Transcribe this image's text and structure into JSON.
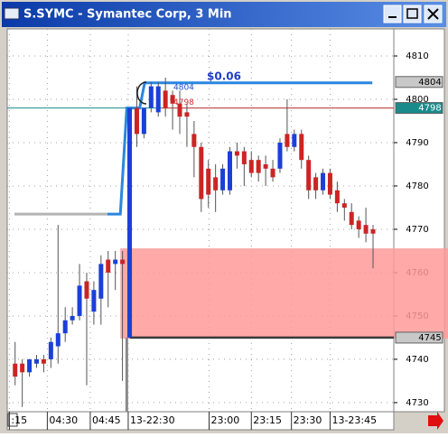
{
  "window": {
    "title": "S.SYMC - Symantec Corp, 3 Min"
  },
  "chart_data": {
    "type": "candlestick",
    "open": [
      4739,
      4739,
      4737,
      4739,
      4740,
      4740,
      4743,
      4746,
      4749,
      4750,
      4758,
      4751,
      4754,
      4763,
      4762,
      4763,
      4745,
      4798,
      4792,
      4798,
      4797,
      4802,
      4801,
      4799,
      4797,
      4792,
      4789,
      4784,
      4782,
      4779,
      4779,
      4788,
      4788,
      4786,
      4786,
      4785,
      4784,
      4784,
      4792,
      4789,
      4792,
      4786,
      4782,
      4779,
      4783,
      4779,
      4776,
      4774,
      4772,
      4771,
      4770
    ],
    "high": [
      4744,
      4740,
      4740,
      4741,
      4741,
      4745,
      4771,
      4752,
      4752,
      4762,
      4760,
      4758,
      4764,
      4765,
      4765,
      4765,
      4798,
      4803,
      4798,
      4804,
      4804,
      4805,
      4802,
      4802,
      4799,
      4795,
      4790,
      4786,
      4785,
      4785,
      4789,
      4790,
      4789,
      4788,
      4787,
      4787,
      4786,
      4791,
      4800,
      4793,
      4793,
      4787,
      4783,
      4784,
      4784,
      4781,
      4777,
      4776,
      4773,
      4775,
      4771
    ],
    "low": [
      4734,
      4729,
      4736,
      4738,
      4737,
      4738,
      4739,
      4744,
      4748,
      4749,
      4734,
      4748,
      4748,
      4752,
      4756,
      4735,
      4745,
      4789,
      4791,
      4797,
      4796,
      4796,
      4793,
      4792,
      4789,
      4782,
      4774,
      4775,
      4774,
      4778,
      4778,
      4784,
      4780,
      4782,
      4781,
      4780,
      4781,
      4783,
      4788,
      4788,
      4784,
      4777,
      4777,
      4778,
      4777,
      4774,
      4772,
      4770,
      4768,
      4767,
      4761
    ],
    "close": [
      4736,
      4737,
      4740,
      4740,
      4739,
      4744,
      4746,
      4749,
      4750,
      4757,
      4754,
      4756,
      4762,
      4760,
      4763,
      4762,
      4798,
      4792,
      4798,
      4803,
      4803,
      4798,
      4799,
      4796,
      4796,
      4789,
      4777,
      4778,
      4779,
      4784,
      4788,
      4787,
      4785,
      4783,
      4783,
      4784,
      4782,
      4790,
      4789,
      4792,
      4786,
      4779,
      4779,
      4783,
      4778,
      4776,
      4775,
      4771,
      4770,
      4769,
      4769
    ],
    "up_color": "#1b3fd8",
    "down_color": "#cc2424",
    "xlim": [
      -1.1,
      52.9
    ],
    "ylim": [
      4727.9,
      4816.25
    ],
    "yticks": [
      4730,
      4740,
      4750,
      4760,
      4770,
      4780,
      4790,
      4800,
      4810
    ],
    "xticks": [
      {
        "value": -0.8,
        "label": ":15"
      },
      {
        "value": 4.5,
        "label": "04:30"
      },
      {
        "value": 10.5,
        "label": "04:45"
      },
      {
        "value": 15.8,
        "label": "13-22:30"
      },
      {
        "value": 27.1,
        "label": "23:00"
      },
      {
        "value": 33,
        "label": "23:15"
      },
      {
        "value": 38.6,
        "label": "23:30"
      },
      {
        "value": 44,
        "label": "13-23:45"
      }
    ],
    "grid": true,
    "zone": {
      "low": 4744.8,
      "high": 4765.6,
      "from": 14.7,
      "color": "#ff9a9a"
    },
    "levels": [
      {
        "value": 4798,
        "from": -1.1,
        "color": "#1a8a8a"
      },
      {
        "value": 4798,
        "from": 20.5,
        "color": "#e04040"
      },
      {
        "value": 4745,
        "from": 16,
        "color": "#3a3a3a"
      }
    ],
    "overlays": [
      {
        "color": "#b4b4b4",
        "x": [
          -0.1,
          12.9
        ],
        "values": [
          4773.5,
          4773.5
        ]
      },
      {
        "color": "#2a86e0",
        "x": [
          12.9,
          14.7,
          15.6,
          17.4,
          18.1,
          49.9
        ],
        "values": [
          4773.5,
          4773.5,
          4798,
          4798,
          4803.8,
          4803.8
        ]
      },
      {
        "color": "#8a8a8a",
        "x": [
          15.6,
          15.6
        ],
        "values": [
          4745,
          4727.9
        ]
      }
    ],
    "annotation": "$0.06",
    "level_labels": [
      {
        "value": 4804,
        "color": "#1f4fd6"
      },
      {
        "value": 4798,
        "color": "#d03030"
      }
    ],
    "price_tags": [
      {
        "value": 4804,
        "color": "#c8c8c8",
        "text_color": "#000000"
      },
      {
        "value": 4798,
        "color": "#1a8a8a",
        "text_color": "#ffffff"
      },
      {
        "value": 4745,
        "color": "#c8c8c8",
        "text_color": "#000000"
      }
    ]
  }
}
